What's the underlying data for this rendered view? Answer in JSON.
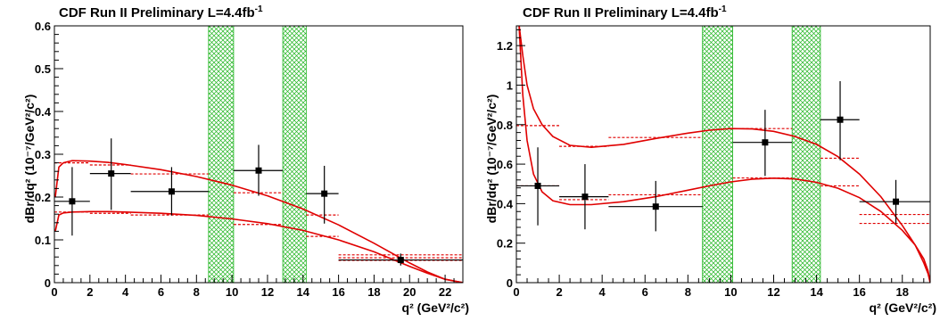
{
  "chart_data": [
    {
      "type": "scatter",
      "title": "CDF Run II Preliminary L=4.4fb",
      "title_sup": "-1",
      "ylabel": "dBr/dq² (10⁻⁷/GeV²/c²)",
      "xlabel": "q² (GeV²/c²)",
      "xlim": [
        0,
        23
      ],
      "ylim": [
        0,
        0.6
      ],
      "xticks": [
        0,
        2,
        4,
        6,
        8,
        10,
        12,
        14,
        16,
        18,
        20,
        22
      ],
      "yticks": [
        0,
        0.1,
        0.2,
        0.3,
        0.4,
        0.5,
        0.6
      ],
      "ytick_labels": [
        "0",
        "0.1",
        "0.2",
        "0.3",
        "0.4",
        "0.5",
        "0.6"
      ],
      "veto_bands": [
        [
          8.68,
          10.09
        ],
        [
          12.86,
          14.18
        ]
      ],
      "data": [
        {
          "x": 1.0,
          "y": 0.19,
          "xerr": [
            0.0,
            2.0
          ],
          "yerr": [
            0.11,
            0.27
          ]
        },
        {
          "x": 3.2,
          "y": 0.255,
          "xerr": [
            2.0,
            4.3
          ],
          "yerr": [
            0.17,
            0.337
          ]
        },
        {
          "x": 6.6,
          "y": 0.213,
          "xerr": [
            4.3,
            8.68
          ],
          "yerr": [
            0.157,
            0.27
          ]
        },
        {
          "x": 11.5,
          "y": 0.262,
          "xerr": [
            10.09,
            12.86
          ],
          "yerr": [
            0.203,
            0.322
          ]
        },
        {
          "x": 15.2,
          "y": 0.208,
          "xerr": [
            14.18,
            16.0
          ],
          "yerr": [
            0.138,
            0.273
          ]
        },
        {
          "x": 19.5,
          "y": 0.053,
          "xerr": [
            16.0,
            23.0
          ],
          "yerr": [
            0.04,
            0.068
          ]
        }
      ],
      "bin_predictions": [
        {
          "range": [
            0.0,
            2.0
          ],
          "values": [
            0.28,
            0.165
          ]
        },
        {
          "range": [
            2.0,
            4.3
          ],
          "values": [
            0.275,
            0.162
          ]
        },
        {
          "range": [
            4.3,
            8.68
          ],
          "values": [
            0.254,
            0.158
          ]
        },
        {
          "range": [
            10.09,
            12.86
          ],
          "values": [
            0.21,
            0.136
          ]
        },
        {
          "range": [
            14.18,
            16.0
          ],
          "values": [
            0.158,
            0.108
          ]
        },
        {
          "range": [
            16.0,
            23.0
          ],
          "values": [
            0.065,
            0.058,
            0.052
          ]
        }
      ],
      "theory_curves": [
        {
          "x": [
            0.05,
            0.25,
            0.5,
            1,
            2,
            3,
            4,
            6,
            8,
            10,
            12,
            14,
            16,
            18,
            20,
            21,
            22,
            23
          ],
          "y": [
            0.2,
            0.27,
            0.28,
            0.285,
            0.284,
            0.281,
            0.276,
            0.264,
            0.248,
            0.228,
            0.203,
            0.172,
            0.135,
            0.092,
            0.046,
            0.025,
            0.008,
            0.0
          ]
        },
        {
          "x": [
            0.05,
            0.25,
            0.5,
            1,
            2,
            3,
            4,
            6,
            8,
            10,
            12,
            14,
            16,
            18,
            20,
            21,
            22,
            23
          ],
          "y": [
            0.12,
            0.158,
            0.163,
            0.165,
            0.166,
            0.166,
            0.165,
            0.162,
            0.157,
            0.149,
            0.138,
            0.122,
            0.1,
            0.072,
            0.038,
            0.022,
            0.008,
            0.0
          ]
        }
      ]
    },
    {
      "type": "scatter",
      "title": "CDF Run II Preliminary L=4.4fb",
      "title_sup": "-1",
      "ylabel": "dBr/dq² (10⁻⁷/GeV²/c²)",
      "xlabel": "q² (GeV²/c²)",
      "xlim": [
        0,
        19.3
      ],
      "ylim": [
        0,
        1.3
      ],
      "xticks": [
        0,
        2,
        4,
        6,
        8,
        10,
        12,
        14,
        16,
        18
      ],
      "yticks": [
        0,
        0.2,
        0.4,
        0.6,
        0.8,
        1.0,
        1.2
      ],
      "ytick_labels": [
        "0",
        "0.2",
        "0.4",
        "0.6",
        "0.8",
        "1",
        "1.2"
      ],
      "veto_bands": [
        [
          8.68,
          10.09
        ],
        [
          12.86,
          14.18
        ]
      ],
      "data": [
        {
          "x": 1.0,
          "y": 0.49,
          "xerr": [
            0.0,
            2.0
          ],
          "yerr": [
            0.29,
            0.685
          ]
        },
        {
          "x": 3.2,
          "y": 0.435,
          "xerr": [
            2.0,
            4.3
          ],
          "yerr": [
            0.27,
            0.6
          ]
        },
        {
          "x": 6.5,
          "y": 0.385,
          "xerr": [
            4.3,
            8.68
          ],
          "yerr": [
            0.26,
            0.515
          ]
        },
        {
          "x": 11.6,
          "y": 0.71,
          "xerr": [
            10.09,
            12.86
          ],
          "yerr": [
            0.54,
            0.875
          ]
        },
        {
          "x": 15.1,
          "y": 0.825,
          "xerr": [
            14.18,
            16.0
          ],
          "yerr": [
            0.62,
            1.02
          ]
        },
        {
          "x": 17.7,
          "y": 0.41,
          "xerr": [
            16.0,
            19.3
          ],
          "yerr": [
            0.3,
            0.52
          ]
        }
      ],
      "bin_predictions": [
        {
          "range": [
            0.0,
            2.0
          ],
          "values": [
            0.795,
            0.49
          ]
        },
        {
          "range": [
            2.0,
            4.3
          ],
          "values": [
            0.69,
            0.42
          ]
        },
        {
          "range": [
            4.3,
            8.68
          ],
          "values": [
            0.735,
            0.445
          ]
        },
        {
          "range": [
            10.09,
            12.86
          ],
          "values": [
            0.78,
            0.53
          ]
        },
        {
          "range": [
            14.18,
            16.0
          ],
          "values": [
            0.63,
            0.49
          ]
        },
        {
          "range": [
            16.0,
            19.3
          ],
          "values": [
            0.345,
            0.3
          ]
        }
      ],
      "theory_curves": [
        {
          "x": [
            0.12,
            0.3,
            0.5,
            0.8,
            1.2,
            1.7,
            2.5,
            3.5,
            5,
            6.5,
            8,
            9,
            10,
            11,
            12,
            13,
            14,
            15,
            16,
            17,
            18,
            18.6,
            19.0,
            19.2,
            19.3
          ],
          "y": [
            1.31,
            1.15,
            1.0,
            0.88,
            0.8,
            0.74,
            0.695,
            0.685,
            0.7,
            0.73,
            0.757,
            0.772,
            0.78,
            0.778,
            0.766,
            0.74,
            0.7,
            0.638,
            0.55,
            0.435,
            0.29,
            0.19,
            0.1,
            0.045,
            0.0
          ]
        },
        {
          "x": [
            0.12,
            0.3,
            0.5,
            0.8,
            1.2,
            1.7,
            2.5,
            3.5,
            5,
            6.5,
            8,
            9,
            10,
            11,
            12,
            13,
            14,
            15,
            16,
            17,
            18,
            18.6,
            19.0,
            19.2,
            19.3
          ],
          "y": [
            1.31,
            0.95,
            0.72,
            0.55,
            0.46,
            0.415,
            0.395,
            0.395,
            0.41,
            0.435,
            0.468,
            0.49,
            0.51,
            0.524,
            0.529,
            0.525,
            0.508,
            0.478,
            0.43,
            0.36,
            0.265,
            0.19,
            0.12,
            0.06,
            0.0
          ]
        }
      ]
    }
  ]
}
